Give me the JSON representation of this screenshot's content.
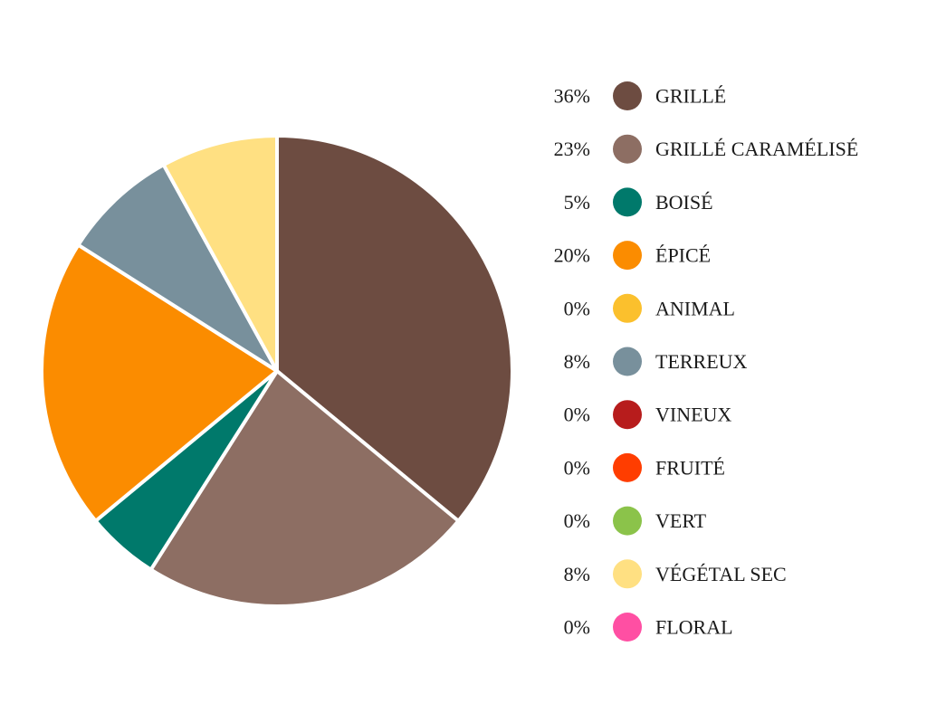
{
  "chart_data": {
    "type": "pie",
    "start_angle": "12 o'clock",
    "direction": "clockwise",
    "legend_position": "right",
    "slice_border_color": "#ffffff",
    "categories": [
      "GRILLÉ",
      "GRILLÉ CARAMÉLISÉ",
      "BOISÉ",
      "ÉPICÉ",
      "ANIMAL",
      "TERREUX",
      "VINEUX",
      "FRUITÉ",
      "VERT",
      "VÉGÉTAL SEC",
      "FLORAL"
    ],
    "values": [
      36,
      23,
      5,
      20,
      0,
      8,
      0,
      0,
      0,
      8,
      0
    ],
    "labels": [
      "36%",
      "23%",
      "5%",
      "20%",
      "0%",
      "8%",
      "0%",
      "0%",
      "0%",
      "8%",
      "0%"
    ],
    "colors": [
      "#6d4c41",
      "#8d6e63",
      "#00796b",
      "#fb8c00",
      "#fbc02d",
      "#78909c",
      "#b71c1c",
      "#ff3d00",
      "#8bc34a",
      "#ffe082",
      "#ff4fa3"
    ]
  }
}
